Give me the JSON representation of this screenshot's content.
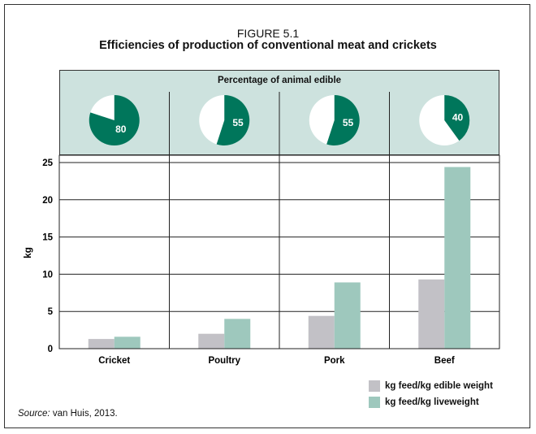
{
  "figure_label": "FIGURE 5.1",
  "title": "Efficiencies of production of conventional meat and crickets",
  "pie_caption": "Percentage of animal edible",
  "source_prefix": "Source:",
  "source_text": " van Huis, 2013.",
  "colors": {
    "edible_series": "#c2c1c6",
    "live_series": "#9ec8bd",
    "pie_fill": "#00765b",
    "pie_panel_bg": "#cde2de"
  },
  "chart_data": {
    "type": "bar",
    "title": "Efficiencies of production of conventional meat and crickets",
    "categories": [
      "Cricket",
      "Poultry",
      "Pork",
      "Beef"
    ],
    "ylabel": "kg",
    "xlabel": "",
    "ylim": [
      0,
      25
    ],
    "yticks": [
      0,
      5,
      10,
      15,
      20,
      25
    ],
    "grid": true,
    "legend_position": "bottom-right",
    "series": [
      {
        "name": "kg feed/kg edible weight",
        "values": [
          1.3,
          2.0,
          4.4,
          9.3
        ]
      },
      {
        "name": "kg feed/kg liveweight",
        "values": [
          1.6,
          4.0,
          8.9,
          24.4
        ]
      }
    ],
    "pies": {
      "title": "Percentage of animal edible",
      "values": [
        80,
        55,
        55,
        40
      ]
    }
  }
}
